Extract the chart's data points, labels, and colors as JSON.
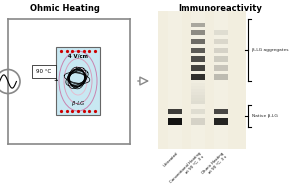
{
  "title_left": "Ohmic Heating",
  "title_right": "Immunoreactivity",
  "temp_label": "90 °C",
  "voltage_label": "4 V/cm",
  "protein_label": "β-LG",
  "aggregate_label": "β-LG aggregates",
  "native_label": "Native β-LG",
  "lane_labels": [
    "Untreated",
    "Conventional Heating\nat 90 °C, 3 s",
    "Ohmic Heating\nat 90 °C, 3 s"
  ],
  "circuit_color": "#888888",
  "dot_color": "#cc0000",
  "gel_bg": "#f0ece0",
  "cell_color": "#c8e8f2",
  "ellipse_colors": [
    "#c878a8",
    "#d898b8",
    "#e8b8cc"
  ]
}
